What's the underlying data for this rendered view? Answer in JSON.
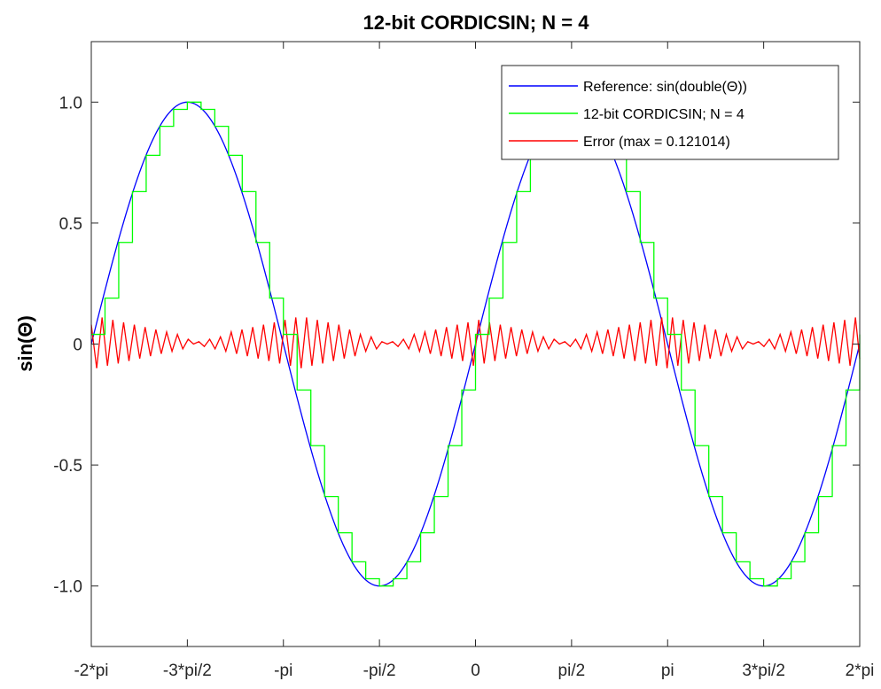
{
  "chart_data": {
    "type": "line",
    "title": "12-bit CORDICSIN; N = 4",
    "ylabel": "sin(Θ)",
    "xlabel": "",
    "xlim": [
      -6.283185,
      6.283185
    ],
    "ylim": [
      -1.25,
      1.25
    ],
    "x_ticks": [
      {
        "value": -6.283185,
        "label": "-2*pi"
      },
      {
        "value": -4.712389,
        "label": "-3*pi/2"
      },
      {
        "value": -3.141593,
        "label": "-pi"
      },
      {
        "value": -1.570796,
        "label": "-pi/2"
      },
      {
        "value": 0,
        "label": "0"
      },
      {
        "value": 1.570796,
        "label": "pi/2"
      },
      {
        "value": 3.141593,
        "label": "pi"
      },
      {
        "value": 4.712389,
        "label": "3*pi/2"
      },
      {
        "value": 6.283185,
        "label": "2*pi"
      }
    ],
    "y_ticks": [
      {
        "value": 1.0,
        "label": "1.0"
      },
      {
        "value": 0.5,
        "label": "0.5"
      },
      {
        "value": 0,
        "label": "0"
      },
      {
        "value": -0.5,
        "label": "-0.5"
      },
      {
        "value": -1.0,
        "label": "-1.0"
      }
    ],
    "grid": false,
    "legend_position": "top-right",
    "series": [
      {
        "name": "Reference: sin(double(Θ))",
        "color": "#0000ff",
        "style": "line",
        "x": [
          -6.283185,
          -5.890486,
          -5.497787,
          -5.105088,
          -4.712389,
          -4.31969,
          -3.926991,
          -3.534292,
          -3.141593,
          -2.748894,
          -2.356194,
          -1.963495,
          -1.570796,
          -1.178097,
          -0.785398,
          -0.392699,
          0,
          0.392699,
          0.785398,
          1.178097,
          1.570796,
          1.963495,
          2.356194,
          2.748894,
          3.141593,
          3.534292,
          3.926991,
          4.31969,
          4.712389,
          5.105088,
          5.497787,
          5.890486,
          6.283185
        ],
        "y": [
          0,
          0.383,
          0.707,
          0.924,
          1.0,
          0.924,
          0.707,
          0.383,
          0,
          -0.383,
          -0.707,
          -0.924,
          -1.0,
          -0.924,
          -0.707,
          -0.383,
          0,
          0.383,
          0.707,
          0.924,
          1.0,
          0.924,
          0.707,
          0.383,
          0,
          -0.383,
          -0.707,
          -0.924,
          -1.0,
          -0.924,
          -0.707,
          -0.383,
          0
        ]
      },
      {
        "name": "12-bit CORDICSIN; N = 4",
        "color": "#00ff00",
        "style": "staircase",
        "x": [
          -6.283185,
          -6.058785,
          -5.834385,
          -5.609985,
          -5.385585,
          -5.161185,
          -4.936785,
          -4.712389,
          -4.487989,
          -4.263589,
          -4.039189,
          -3.814789,
          -3.590389,
          -3.365989,
          -3.141593,
          -2.917193,
          -2.692793,
          -2.468393,
          -2.243993,
          -2.019593,
          -1.795193,
          -1.570796,
          -1.346396,
          -1.121996,
          -0.897596,
          -0.673196,
          -0.448796,
          -0.224396,
          0,
          0.2244,
          0.4488,
          0.6732,
          0.8976,
          1.122,
          1.3464,
          1.570796,
          1.795196,
          2.019596,
          2.243996,
          2.468396,
          2.692796,
          2.917196,
          3.141593,
          3.365993,
          3.590393,
          3.814793,
          4.039193,
          4.263593,
          4.487993,
          4.712389,
          4.936789,
          5.161189,
          5.385589,
          5.609989,
          5.834389,
          6.058789,
          6.283185
        ],
        "y": [
          0.04,
          0.19,
          0.42,
          0.63,
          0.78,
          0.9,
          0.97,
          1.0,
          0.97,
          0.9,
          0.78,
          0.63,
          0.42,
          0.19,
          0.04,
          -0.19,
          -0.42,
          -0.63,
          -0.78,
          -0.9,
          -0.97,
          -1.0,
          -0.97,
          -0.9,
          -0.78,
          -0.63,
          -0.42,
          -0.19,
          0.04,
          0.19,
          0.42,
          0.63,
          0.78,
          0.9,
          0.97,
          1.0,
          0.97,
          0.9,
          0.78,
          0.63,
          0.42,
          0.19,
          0.04,
          -0.19,
          -0.42,
          -0.63,
          -0.78,
          -0.9,
          -0.97,
          -1.0,
          -0.97,
          -0.9,
          -0.78,
          -0.63,
          -0.42,
          -0.19,
          0.04
        ]
      },
      {
        "name": "Error (max = 0.121014)",
        "color": "#ff0000",
        "style": "line",
        "x": [
          -6.283185,
          -6.195,
          -6.107,
          -6.019,
          -5.931,
          -5.843,
          -5.755,
          -5.667,
          -5.579,
          -5.491,
          -5.403,
          -5.315,
          -5.227,
          -5.139,
          -5.051,
          -4.963,
          -4.875,
          -4.787,
          -4.699,
          -4.611,
          -4.523,
          -4.435,
          -4.347,
          -4.259,
          -4.171,
          -4.083,
          -3.995,
          -3.907,
          -3.819,
          -3.731,
          -3.643,
          -3.555,
          -3.467,
          -3.379,
          -3.291,
          -3.203,
          -3.115,
          -3.027,
          -2.939,
          -2.851,
          -2.763,
          -2.675,
          -2.587,
          -2.499,
          -2.411,
          -2.323,
          -2.235,
          -2.147,
          -2.059,
          -1.971,
          -1.883,
          -1.795,
          -1.707,
          -1.619,
          -1.531,
          -1.443,
          -1.355,
          -1.267,
          -1.179,
          -1.091,
          -1.003,
          -0.915,
          -0.827,
          -0.739,
          -0.651,
          -0.563,
          -0.475,
          -0.387,
          -0.299,
          -0.211,
          -0.123,
          -0.035,
          0.053,
          0.141,
          0.229,
          0.317,
          0.405,
          0.493,
          0.581,
          0.669,
          0.757,
          0.845,
          0.933,
          1.021,
          1.109,
          1.197,
          1.285,
          1.373,
          1.461,
          1.549,
          1.637,
          1.725,
          1.813,
          1.901,
          1.989,
          2.077,
          2.165,
          2.253,
          2.341,
          2.429,
          2.517,
          2.605,
          2.693,
          2.781,
          2.869,
          2.957,
          3.045,
          3.133,
          3.221,
          3.309,
          3.397,
          3.485,
          3.573,
          3.661,
          3.749,
          3.837,
          3.925,
          4.013,
          4.101,
          4.189,
          4.277,
          4.365,
          4.453,
          4.541,
          4.629,
          4.717,
          4.805,
          4.893,
          4.981,
          5.069,
          5.157,
          5.245,
          5.333,
          5.421,
          5.509,
          5.597,
          5.685,
          5.773,
          5.861,
          5.949,
          6.037,
          6.125,
          6.213,
          6.283185
        ],
        "y": [
          0.08,
          -0.1,
          0.11,
          -0.09,
          0.1,
          -0.08,
          0.09,
          -0.07,
          0.08,
          -0.06,
          0.07,
          -0.05,
          0.06,
          -0.04,
          0.05,
          -0.03,
          0.04,
          -0.02,
          0.02,
          0.0,
          0.01,
          -0.01,
          0.02,
          -0.02,
          0.03,
          -0.03,
          0.05,
          -0.04,
          0.06,
          -0.05,
          0.07,
          -0.06,
          0.08,
          -0.07,
          0.09,
          -0.08,
          0.1,
          -0.09,
          0.11,
          -0.1,
          0.11,
          -0.09,
          0.1,
          -0.08,
          0.09,
          -0.07,
          0.08,
          -0.06,
          0.06,
          -0.05,
          0.04,
          -0.03,
          0.03,
          -0.02,
          0.01,
          0.0,
          0.01,
          -0.01,
          0.02,
          -0.02,
          0.04,
          -0.03,
          0.05,
          -0.04,
          0.06,
          -0.05,
          0.07,
          -0.06,
          0.08,
          -0.07,
          0.09,
          -0.09,
          0.1,
          -0.08,
          0.09,
          -0.07,
          0.08,
          -0.06,
          0.07,
          -0.05,
          0.06,
          -0.04,
          0.05,
          -0.03,
          0.03,
          -0.02,
          0.02,
          0.0,
          0.01,
          -0.01,
          0.02,
          -0.02,
          0.04,
          -0.03,
          0.05,
          -0.04,
          0.06,
          -0.05,
          0.07,
          -0.06,
          0.08,
          -0.07,
          0.09,
          -0.08,
          0.1,
          -0.09,
          0.11,
          -0.1,
          0.11,
          -0.09,
          0.1,
          -0.08,
          0.09,
          -0.07,
          0.08,
          -0.06,
          0.06,
          -0.05,
          0.04,
          -0.03,
          0.03,
          -0.02,
          0.01,
          0.0,
          0.01,
          -0.01,
          0.02,
          -0.02,
          0.04,
          -0.03,
          0.05,
          -0.04,
          0.06,
          -0.05,
          0.07,
          -0.06,
          0.08,
          -0.07,
          0.09,
          -0.08,
          0.1,
          -0.09,
          0.11,
          -0.06
        ]
      }
    ]
  }
}
